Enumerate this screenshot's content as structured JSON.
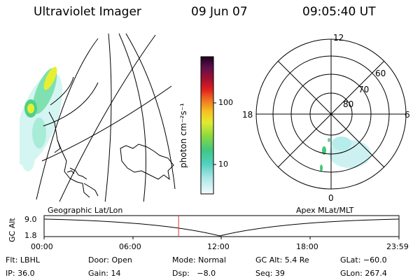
{
  "header": {
    "title": "Ultraviolet Imager",
    "date": "09 Jun 07",
    "time": "09:05:40 UT"
  },
  "colorbar": {
    "label": "photon cm⁻²s⁻¹",
    "ticks": [
      "100",
      "10"
    ],
    "scale": "log"
  },
  "polar": {
    "hour_labels": {
      "top": "12",
      "left": "18",
      "right": "6",
      "bottom": "0"
    },
    "lat_labels": [
      "60",
      "70",
      "80"
    ]
  },
  "timeline": {
    "left_title": "Geographic Lat/Lon",
    "right_title": "Apex MLat/MLT",
    "axis_label": "GC Alt",
    "y_ticks": [
      "9.0",
      "1.8"
    ],
    "x_ticks": [
      "00:00",
      "06:00",
      "12:00",
      "18:00",
      "23:59"
    ],
    "current_time_fraction": 0.379
  },
  "footer": {
    "row1": [
      "Flt: LBHL",
      "Door: Open",
      "Mode: Normal",
      "GC Alt: 5.4 Re",
      "GLat: −60.0"
    ],
    "row2": [
      "IP: 36.0",
      "Gain: 14",
      "Dsp:   −8.0",
      "Seq: 39",
      "GLon: 267.4"
    ]
  },
  "colors": {
    "marker": "#e03030",
    "aurora_low": "#b9f0ea",
    "aurora_mid": "#4fd08a",
    "aurora_high": "#e6ef30"
  }
}
